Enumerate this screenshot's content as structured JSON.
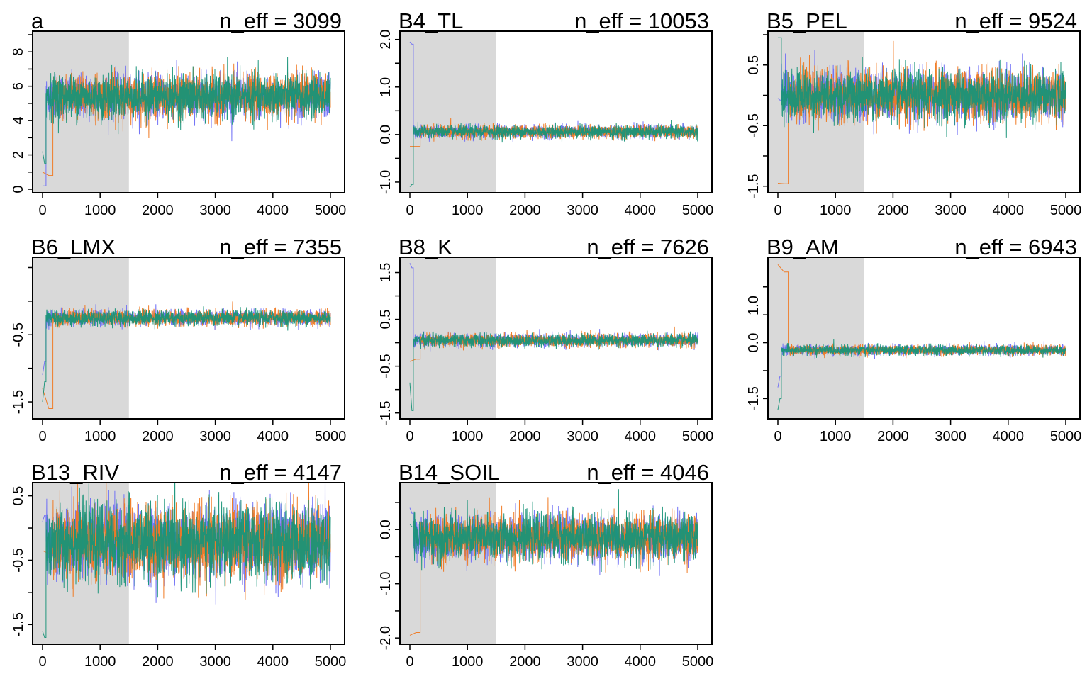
{
  "figure": {
    "warmup_end": 1500,
    "n_iter": 5000,
    "chain_colors": [
      "#6E6EF5",
      "#F07820",
      "#189478"
    ],
    "warmup_shade_color": "#D9D9D9"
  },
  "chart_data": [
    {
      "type": "line",
      "title": "a",
      "annotation": "n_eff = 3099",
      "xlim": [
        0,
        5000
      ],
      "ylim": [
        0,
        9
      ],
      "x_ticks": [
        0,
        1000,
        2000,
        3000,
        4000,
        5000
      ],
      "y_ticks": [
        0,
        2,
        4,
        6,
        8
      ],
      "y_tick_labels": [
        "0",
        "2",
        "4",
        "6",
        "8"
      ],
      "series_summary": {
        "center": 5.4,
        "spread": 1.7,
        "starts": [
          {
            "chain": 0,
            "values": [
              0.2,
              0.2
            ]
          },
          {
            "chain": 1,
            "values": [
              1.0,
              0.8
            ]
          },
          {
            "chain": 2,
            "values": [
              2.2,
              1.5
            ]
          }
        ]
      }
    },
    {
      "type": "line",
      "title": "B4_TL",
      "annotation": "n_eff = 10053",
      "xlim": [
        0,
        5000
      ],
      "ylim": [
        -1.15,
        2.1
      ],
      "x_ticks": [
        0,
        1000,
        2000,
        3000,
        4000,
        5000
      ],
      "y_ticks": [
        -1.0,
        0.0,
        1.0,
        2.0
      ],
      "y_tick_labels": [
        "-1.0",
        "0.0",
        "1.0",
        "2.0"
      ],
      "series_summary": {
        "center": 0.06,
        "spread": 0.18,
        "starts": [
          {
            "chain": 0,
            "values": [
              1.95,
              1.9
            ]
          },
          {
            "chain": 1,
            "values": [
              -0.25,
              -0.25
            ]
          },
          {
            "chain": 2,
            "values": [
              -1.1,
              -1.05
            ]
          }
        ]
      }
    },
    {
      "type": "line",
      "title": "B5_PEL",
      "annotation": "n_eff = 9524",
      "xlim": [
        0,
        5000
      ],
      "ylim": [
        -1.55,
        1.0
      ],
      "x_ticks": [
        0,
        1000,
        2000,
        3000,
        4000,
        5000
      ],
      "y_ticks": [
        -1.5,
        -0.5,
        0.5
      ],
      "y_tick_labels": [
        "-1.5",
        "-0.5",
        "0.5"
      ],
      "series_summary": {
        "center": 0.0,
        "spread": 0.55,
        "starts": [
          {
            "chain": 0,
            "values": [
              -0.05,
              -0.08
            ]
          },
          {
            "chain": 1,
            "values": [
              -1.45,
              -1.46
            ]
          },
          {
            "chain": 2,
            "values": [
              0.95,
              0.95
            ]
          }
        ]
      }
    },
    {
      "type": "line",
      "title": "B6_LMX",
      "annotation": "n_eff = 7355",
      "xlim": [
        0,
        5000
      ],
      "ylim": [
        -1.7,
        0.6
      ],
      "x_ticks": [
        0,
        1000,
        2000,
        3000,
        4000,
        5000
      ],
      "y_ticks": [
        -1.5,
        -0.5
      ],
      "y_tick_labels": [
        "-1.5",
        "-0.5"
      ],
      "series_summary": {
        "center": -0.25,
        "spread": 0.15,
        "starts": [
          {
            "chain": 0,
            "values": [
              -1.1,
              -0.9
            ]
          },
          {
            "chain": 1,
            "values": [
              -1.3,
              -1.6
            ]
          },
          {
            "chain": 2,
            "values": [
              -1.5,
              -1.2
            ]
          }
        ]
      }
    },
    {
      "type": "line",
      "title": "B8_K",
      "annotation": "n_eff = 7626",
      "xlim": [
        0,
        5000
      ],
      "ylim": [
        -1.55,
        1.75
      ],
      "x_ticks": [
        0,
        1000,
        2000,
        3000,
        4000,
        5000
      ],
      "y_ticks": [
        -1.5,
        -0.5,
        0.5,
        1.5
      ],
      "y_tick_labels": [
        "-1.5",
        "-0.5",
        "0.5",
        "1.5"
      ],
      "series_summary": {
        "center": 0.05,
        "spread": 0.18,
        "starts": [
          {
            "chain": 0,
            "values": [
              1.7,
              1.6
            ]
          },
          {
            "chain": 1,
            "values": [
              -0.4,
              -0.35
            ]
          },
          {
            "chain": 2,
            "values": [
              -0.85,
              -1.45
            ]
          }
        ]
      }
    },
    {
      "type": "line",
      "title": "B9_AM",
      "annotation": "n_eff = 6943",
      "xlim": [
        0,
        5000
      ],
      "ylim": [
        -1.95,
        2.2
      ],
      "x_ticks": [
        0,
        1000,
        2000,
        3000,
        4000,
        5000
      ],
      "y_ticks": [
        -1.5,
        0.0,
        1.0
      ],
      "y_tick_labels": [
        "-1.5",
        "0.0",
        "1.0"
      ],
      "series_summary": {
        "center": -0.2,
        "spread": 0.18,
        "starts": [
          {
            "chain": 0,
            "values": [
              -1.2,
              -0.9
            ]
          },
          {
            "chain": 1,
            "values": [
              2.1,
              1.9
            ]
          },
          {
            "chain": 2,
            "values": [
              -1.8,
              -1.5
            ]
          }
        ]
      }
    },
    {
      "type": "line",
      "title": "B13_RIV",
      "annotation": "n_eff = 4147",
      "xlim": [
        0,
        5000
      ],
      "ylim": [
        -1.75,
        0.65
      ],
      "x_ticks": [
        0,
        1000,
        2000,
        3000,
        4000,
        5000
      ],
      "y_ticks": [
        -1.5,
        -0.5,
        0.5
      ],
      "y_tick_labels": [
        "-1.5",
        "-0.5",
        "0.5"
      ],
      "series_summary": {
        "center": -0.22,
        "spread": 0.75,
        "starts": [
          {
            "chain": 0,
            "values": [
              0.1,
              0.2
            ]
          },
          {
            "chain": 1,
            "values": [
              -0.35,
              -0.4
            ]
          },
          {
            "chain": 2,
            "values": [
              -1.6,
              -1.7
            ]
          }
        ]
      }
    },
    {
      "type": "line",
      "title": "B14_SOIL",
      "annotation": "n_eff = 4046",
      "xlim": [
        0,
        5000
      ],
      "ylim": [
        -2.05,
        0.8
      ],
      "x_ticks": [
        0,
        1000,
        2000,
        3000,
        4000,
        5000
      ],
      "y_ticks": [
        -2.0,
        -1.0,
        0.0
      ],
      "y_tick_labels": [
        "-2.0",
        "-1.0",
        "0.0"
      ],
      "series_summary": {
        "center": -0.15,
        "spread": 0.55,
        "starts": [
          {
            "chain": 0,
            "values": [
              0.4,
              0.3
            ]
          },
          {
            "chain": 1,
            "values": [
              -1.95,
              -1.9
            ]
          },
          {
            "chain": 2,
            "values": [
              0.1,
              0.05
            ]
          }
        ]
      }
    }
  ]
}
